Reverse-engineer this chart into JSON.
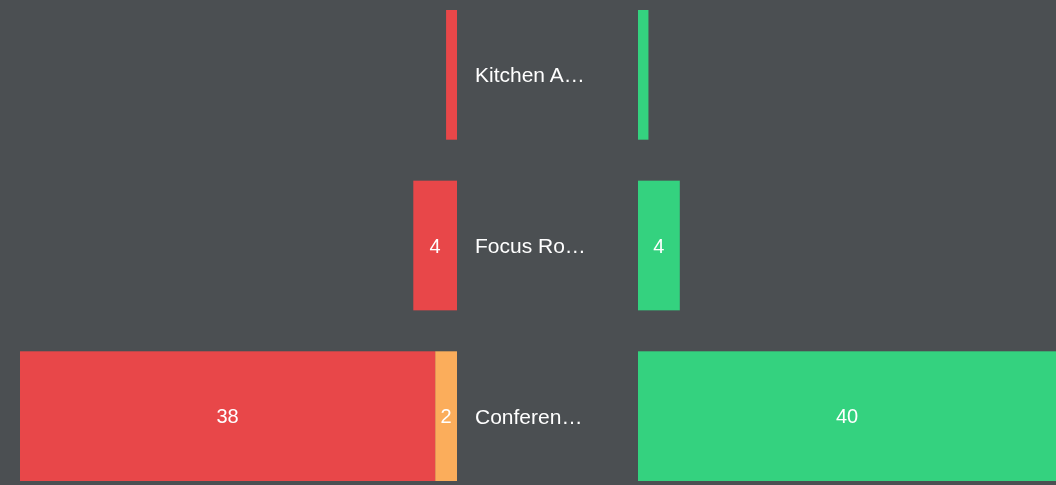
{
  "chart_data": [
    {
      "type": "bar",
      "orientation": "horizontal",
      "stacked": true,
      "categories": [
        "Kitchen A…",
        "Focus Ro…",
        "Conferen…"
      ],
      "xlim": [
        40,
        0
      ],
      "tick_labels": "y",
      "series": [
        {
          "color": "#fbad5b",
          "values": [
            0,
            0,
            2
          ],
          "value_labels": [
            null,
            null,
            "2"
          ]
        },
        {
          "color": "#e84749",
          "values": [
            1,
            4,
            38
          ],
          "value_labels": [
            null,
            "4",
            "38"
          ]
        }
      ]
    },
    {
      "type": "bar",
      "orientation": "horizontal",
      "stacked": true,
      "categories": [
        null,
        null,
        null
      ],
      "xlim": [
        0,
        40
      ],
      "series": [
        {
          "color": "#34d27f",
          "values": [
            1,
            4,
            40
          ],
          "value_labels": [
            null,
            "4",
            "40"
          ]
        }
      ]
    }
  ]
}
